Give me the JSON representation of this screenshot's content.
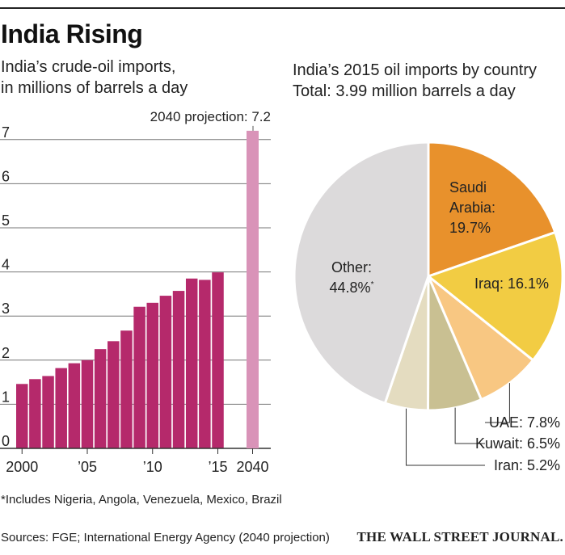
{
  "header": {
    "title": "India Rising"
  },
  "chart_data": [
    {
      "type": "bar",
      "title_lines": [
        "India’s crude-oil imports,",
        "in millions of barrels a day"
      ],
      "x": [
        2000,
        2001,
        2002,
        2003,
        2004,
        2005,
        2006,
        2007,
        2008,
        2009,
        2010,
        2011,
        2012,
        2013,
        2014,
        2015
      ],
      "values": [
        1.46,
        1.57,
        1.64,
        1.82,
        1.93,
        2.0,
        2.25,
        2.43,
        2.67,
        3.21,
        3.3,
        3.46,
        3.57,
        3.85,
        3.82,
        3.99
      ],
      "projection": {
        "x": 2040,
        "value": 7.2,
        "label": "2040 projection: 7.2"
      },
      "x_tick_labels": [
        "2000",
        "’05",
        "’10",
        "’15",
        "2040"
      ],
      "y_tick_labels": [
        "0",
        "1",
        "2",
        "3",
        "4",
        "5",
        "6",
        "7"
      ],
      "ylim": [
        0,
        7.3
      ],
      "grid": true,
      "colors": {
        "bars": "#b5296b",
        "projection": "#d993b8",
        "grid": "#777777",
        "baseline": "#333333"
      }
    },
    {
      "type": "pie",
      "title_lines": [
        "India’s 2015 oil imports by country",
        "Total: 3.99 million barrels a day"
      ],
      "slices": [
        {
          "label_lines": [
            "Saudi",
            "Arabia:",
            "19.7%"
          ],
          "value": 19.7,
          "color": "#e8912c"
        },
        {
          "label_lines": [
            "Iraq: 16.1%"
          ],
          "value": 16.1,
          "color": "#f2cc43"
        },
        {
          "label_lines": [
            "UAE: 7.8%"
          ],
          "value": 7.8,
          "color": "#f8c782"
        },
        {
          "label_lines": [
            "Kuwait: 6.5%"
          ],
          "value": 6.5,
          "color": "#c9c092"
        },
        {
          "label_lines": [
            "Iran: 5.2%"
          ],
          "value": 5.2,
          "color": "#e4dcc0"
        },
        {
          "label_lines": [
            "Other:",
            "44.8%"
          ],
          "value": 44.8,
          "color": "#dcdadb",
          "footnote_mark": "*"
        }
      ]
    }
  ],
  "footer": {
    "footnote": "*Includes Nigeria, Angola, Venezuela, Mexico, Brazil",
    "sources": "Sources: FGE; International Energy Agency (2040 projection)",
    "credit": "THE WALL STREET JOURNAL."
  }
}
